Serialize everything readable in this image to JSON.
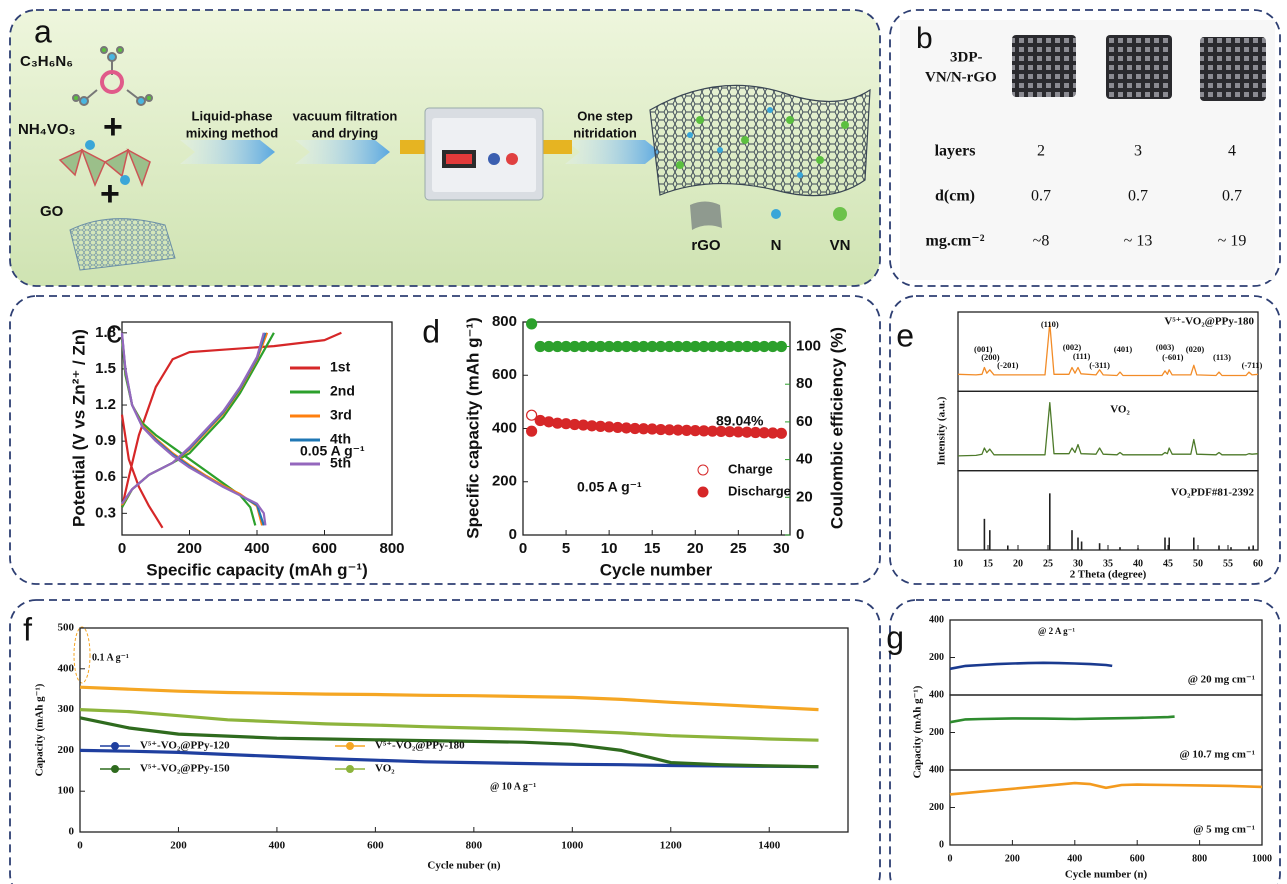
{
  "schematic": {
    "label": "a",
    "formula_melamine": "C₃H₆N₆",
    "formula_vanadate": "NH₄VO₃",
    "go": "GO",
    "plus": [
      "+",
      "+"
    ],
    "steps": [
      [
        "Liquid-phase",
        "mixing method"
      ],
      [
        "vacuum filtration",
        "and drying"
      ],
      [
        "One step",
        "nitridation"
      ]
    ],
    "legend": [
      "rGO",
      "N",
      "VN"
    ]
  },
  "table": {
    "label": "b",
    "title": [
      "3DP-",
      "VN/N-rGO"
    ],
    "rows": [
      [
        "layers",
        "2",
        "3",
        "4"
      ],
      [
        "d(cm)",
        "0.7",
        "0.7",
        "0.7"
      ],
      [
        "mg.cm⁻²",
        "~8",
        "~ 13",
        "~ 19"
      ]
    ]
  },
  "chart_data": [
    {
      "type": "line",
      "label": "c",
      "xlabel": "Specific capacity (mAh g⁻¹)",
      "ylabel": "Potential (V vs Zn²⁺ / Zn)",
      "annotations": [
        "0.05 A g⁻¹"
      ],
      "xlim": [
        0,
        800
      ],
      "xticks": [
        0,
        200,
        400,
        600,
        800
      ],
      "ylim": [
        0.12,
        1.89
      ],
      "yticks": [
        0.3,
        0.6,
        0.9,
        1.2,
        1.5,
        1.8
      ],
      "series": [
        {
          "name": "1st",
          "color": "#d62728",
          "x": [
            0,
            20,
            50,
            80,
            100,
            120,
            null,
            0,
            20,
            50,
            100,
            150,
            200,
            300,
            450,
            600,
            650
          ],
          "values": [
            1.12,
            0.75,
            0.52,
            0.36,
            0.27,
            0.18,
            null,
            0.35,
            0.6,
            0.95,
            1.35,
            1.58,
            1.64,
            1.66,
            1.69,
            1.74,
            1.8
          ]
        },
        {
          "name": "2nd",
          "color": "#2ca02c",
          "x": [
            0,
            10,
            30,
            60,
            100,
            150,
            200,
            250,
            300,
            350,
            380,
            395,
            null,
            0,
            30,
            80,
            150,
            200,
            250,
            300,
            350,
            400,
            430,
            450
          ],
          "values": [
            1.75,
            1.45,
            1.2,
            1.05,
            0.95,
            0.85,
            0.75,
            0.65,
            0.55,
            0.45,
            0.35,
            0.2,
            null,
            0.35,
            0.5,
            0.62,
            0.72,
            0.8,
            0.95,
            1.1,
            1.3,
            1.55,
            1.7,
            1.8
          ]
        },
        {
          "name": "3rd",
          "color": "#ff7f0e",
          "x": [
            0,
            10,
            30,
            60,
            100,
            150,
            200,
            250,
            300,
            350,
            400,
            415,
            null,
            0,
            30,
            80,
            150,
            200,
            250,
            300,
            350,
            400,
            430
          ],
          "values": [
            1.78,
            1.48,
            1.2,
            1.03,
            0.92,
            0.8,
            0.7,
            0.61,
            0.53,
            0.46,
            0.36,
            0.2,
            null,
            0.37,
            0.5,
            0.62,
            0.72,
            0.83,
            0.98,
            1.13,
            1.33,
            1.58,
            1.8
          ]
        },
        {
          "name": "4th",
          "color": "#1f77b4",
          "x": [
            0,
            10,
            30,
            60,
            100,
            150,
            200,
            250,
            300,
            350,
            400,
            420,
            null,
            0,
            30,
            80,
            150,
            200,
            250,
            300,
            350,
            400,
            425
          ],
          "values": [
            1.79,
            1.49,
            1.2,
            1.02,
            0.91,
            0.79,
            0.69,
            0.6,
            0.52,
            0.45,
            0.37,
            0.2,
            null,
            0.38,
            0.5,
            0.62,
            0.72,
            0.84,
            0.99,
            1.14,
            1.34,
            1.59,
            1.8
          ]
        },
        {
          "name": "5th",
          "color": "#9467bd",
          "x": [
            0,
            10,
            30,
            60,
            100,
            150,
            200,
            250,
            300,
            350,
            400,
            420,
            425,
            null,
            0,
            30,
            80,
            150,
            200,
            250,
            300,
            350,
            400,
            420
          ],
          "values": [
            1.8,
            1.5,
            1.2,
            1.02,
            0.9,
            0.78,
            0.68,
            0.6,
            0.52,
            0.45,
            0.38,
            0.3,
            0.2,
            null,
            0.38,
            0.5,
            0.62,
            0.72,
            0.85,
            1.0,
            1.15,
            1.35,
            1.6,
            1.8
          ]
        }
      ]
    },
    {
      "type": "scatter",
      "label": "d",
      "xlabel": "Cycle number",
      "ylabel": "Specific capacity (mAh g⁻¹)",
      "y2label": "Coulombic efficiency (%)",
      "annotations": [
        "0.05 A g⁻¹",
        "89.04%"
      ],
      "y2color": "#2ca02c",
      "x": [
        1,
        2,
        3,
        4,
        5,
        6,
        7,
        8,
        9,
        10,
        11,
        12,
        13,
        14,
        15,
        16,
        17,
        18,
        19,
        20,
        21,
        22,
        23,
        24,
        25,
        26,
        27,
        28,
        29,
        30
      ],
      "xlim": [
        0,
        31
      ],
      "xticks": [
        0,
        5,
        10,
        15,
        20,
        25,
        30
      ],
      "ylim": [
        0,
        800
      ],
      "yticks": [
        0,
        200,
        400,
        600,
        800
      ],
      "y2lim": [
        0,
        113
      ],
      "y2ticks": [
        0,
        20,
        40,
        60,
        80,
        100
      ],
      "series": [
        {
          "name": "Charge",
          "color": "#d62728",
          "marker": "open",
          "values": [
            450,
            null,
            null,
            null,
            null,
            null,
            null,
            null,
            null,
            null,
            null,
            null,
            null,
            null,
            null,
            null,
            null,
            null,
            null,
            null,
            null,
            null,
            null,
            null,
            null,
            null,
            null,
            null,
            null,
            null
          ]
        },
        {
          "name": "Discharge",
          "color": "#d62728",
          "marker": "filled",
          "values": [
            390,
            430,
            425,
            420,
            418,
            415,
            413,
            410,
            408,
            406,
            404,
            402,
            400,
            399,
            398,
            396,
            395,
            394,
            393,
            392,
            391,
            390,
            389,
            388,
            387,
            386,
            385,
            384,
            383,
            382
          ]
        },
        {
          "color": "#2ca02c",
          "marker": "filled",
          "axis": "y2",
          "values": [
            112,
            100,
            100,
            100,
            100,
            100,
            100,
            100,
            100,
            100,
            100,
            100,
            100,
            100,
            100,
            100,
            100,
            100,
            100,
            100,
            100,
            100,
            100,
            100,
            100,
            100,
            100,
            100,
            100,
            100
          ]
        }
      ]
    },
    {
      "type": "line",
      "label": "e",
      "xlabel": "2 Theta (degree)",
      "ylabel": "Intensity (a.u.)",
      "xlim": [
        10,
        60
      ],
      "xticks": [
        10,
        15,
        20,
        25,
        30,
        35,
        40,
        45,
        50,
        55,
        60
      ],
      "x": [
        10,
        13,
        14,
        14.4,
        14.8,
        15.3,
        16,
        24.5,
        25.3,
        26,
        28.5,
        29,
        29.5,
        30,
        30.5,
        33,
        33.6,
        34.2,
        36.5,
        37,
        37.5,
        44,
        44.5,
        44.9,
        45.2,
        45.7,
        48.8,
        49.3,
        49.8,
        53,
        53.5,
        54,
        58,
        58.5,
        59,
        60
      ],
      "peak_labels": [
        {
          "label": "(001)",
          "x": 14.2
        },
        {
          "label": "(200)",
          "x": 15.4
        },
        {
          "label": "(-201)",
          "x": 18.3
        },
        {
          "label": "(110)",
          "x": 25.3
        },
        {
          "label": "(002)",
          "x": 29
        },
        {
          "label": "(111)",
          "x": 30.6
        },
        {
          "label": "(-311)",
          "x": 33.6
        },
        {
          "label": "(401)",
          "x": 37.5
        },
        {
          "label": "(003)",
          "x": 44.5
        },
        {
          "label": "(-601)",
          "x": 45.8
        },
        {
          "label": "(020)",
          "x": 49.5
        },
        {
          "label": "(113)",
          "x": 54
        },
        {
          "label": "(-711)",
          "x": 59
        }
      ],
      "panels": [
        {
          "ylim": [
            -20,
            120
          ],
          "series": [
            {
              "name": "V⁵⁺-VO₂@PPy-180",
              "color": "#f28c28",
              "values": [
                10,
                9,
                10,
                22,
                12,
                18,
                9,
                9,
                100,
                10,
                10,
                22,
                12,
                22,
                11,
                9,
                18,
                9,
                8,
                14,
                8,
                8,
                16,
                10,
                18,
                9,
                9,
                26,
                9,
                8,
                14,
                8,
                8,
                14,
                9,
                10
              ]
            }
          ]
        },
        {
          "ylim": [
            -20,
            120
          ],
          "series": [
            {
              "name": "VO₂",
              "color": "#4d7a2a",
              "values": [
                6,
                7,
                9,
                20,
                12,
                18,
                8,
                8,
                100,
                10,
                10,
                20,
                12,
                26,
                10,
                9,
                20,
                9,
                8,
                12,
                8,
                8,
                12,
                10,
                20,
                9,
                9,
                35,
                9,
                8,
                12,
                8,
                8,
                10,
                9,
                10
              ]
            }
          ]
        },
        {
          "ylim": [
            0,
            140
          ],
          "series": [
            {
              "name": "VO₂PDF#81-2392",
              "color": "#222222",
              "type": "bar",
              "x": [
                14.4,
                15.3,
                18.3,
                25.3,
                29,
                30,
                30.6,
                33.6,
                37,
                40,
                44.5,
                45.2,
                49.3,
                53.5,
                55.5,
                58.5,
                59.2
              ],
              "values": [
                55,
                35,
                8,
                100,
                35,
                22,
                15,
                12,
                5,
                3,
                22,
                22,
                22,
                8,
                5,
                6,
                8
              ]
            }
          ]
        }
      ]
    },
    {
      "type": "line",
      "label": "f",
      "xlabel": "Cycle nuber (n)",
      "ylabel": "Capacity (mAh g⁻¹)",
      "annotations": [
        "0.1 A g⁻¹",
        "@ 10 A g⁻¹"
      ],
      "x": [
        0,
        100,
        200,
        300,
        400,
        500,
        600,
        700,
        800,
        900,
        1000,
        1100,
        1200,
        1300,
        1400,
        1500
      ],
      "xlim": [
        0,
        1560
      ],
      "xticks": [
        0,
        200,
        400,
        600,
        800,
        1000,
        1200,
        1400
      ],
      "ylim": [
        0,
        500
      ],
      "yticks": [
        0,
        100,
        200,
        300,
        400,
        500
      ],
      "series": [
        {
          "name": "V⁵⁺-VO₂@PPy-120",
          "color": "#1f3f9f",
          "values": [
            200,
            198,
            195,
            190,
            185,
            180,
            176,
            172,
            170,
            168,
            166,
            165,
            163,
            162,
            161,
            160
          ]
        },
        {
          "name": "V⁵⁺-VO₂@PPy-180",
          "color": "#f5a623",
          "values": [
            355,
            350,
            345,
            342,
            340,
            338,
            337,
            335,
            334,
            332,
            330,
            325,
            318,
            312,
            306,
            300
          ]
        },
        {
          "name": "V⁵⁺-VO₂@PPy-150",
          "color": "#2f6b1e",
          "values": [
            280,
            255,
            240,
            235,
            230,
            228,
            226,
            224,
            222,
            220,
            215,
            200,
            170,
            165,
            162,
            160
          ]
        },
        {
          "name": "VO₂",
          "color": "#8db43c",
          "values": [
            300,
            295,
            285,
            275,
            270,
            265,
            262,
            258,
            255,
            252,
            248,
            243,
            236,
            232,
            228,
            225
          ]
        }
      ]
    },
    {
      "type": "line",
      "label": "g",
      "xlabel": "Cycle number (n)",
      "ylabel": "Capacity (mAh g⁻¹)",
      "annotations": [
        "@ 2 A g⁻¹"
      ],
      "xlim": [
        0,
        1000
      ],
      "xticks": [
        0,
        200,
        400,
        600,
        800,
        1000
      ],
      "panels": [
        {
          "ylim": [
            0,
            400
          ],
          "yticks": [
            200,
            400
          ],
          "series": [
            {
              "name": "@ 20 mg cm⁻¹",
              "color": "#1a3a8f",
              "x": [
                0,
                50,
                100,
                150,
                200,
                250,
                300,
                350,
                400,
                450,
                500,
                520
              ],
              "values": [
                140,
                155,
                160,
                165,
                168,
                170,
                172,
                170,
                168,
                165,
                160,
                155
              ]
            }
          ]
        },
        {
          "ylim": [
            0,
            400
          ],
          "yticks": [
            200,
            400
          ],
          "series": [
            {
              "name": "@ 10.7 mg cm⁻¹",
              "color": "#2e8b2e",
              "x": [
                0,
                50,
                100,
                200,
                300,
                400,
                500,
                600,
                700,
                720
              ],
              "values": [
                255,
                270,
                272,
                275,
                274,
                272,
                275,
                278,
                282,
                285
              ]
            }
          ]
        },
        {
          "ylim": [
            0,
            400
          ],
          "yticks": [
            0,
            200,
            400
          ],
          "series": [
            {
              "name": "@ 5 mg cm⁻¹",
              "color": "#f39a1e",
              "x": [
                0,
                100,
                200,
                300,
                400,
                450,
                500,
                550,
                600,
                700,
                800,
                900,
                1000
              ],
              "values": [
                270,
                285,
                300,
                315,
                330,
                325,
                305,
                320,
                322,
                320,
                318,
                315,
                310
              ]
            }
          ]
        }
      ]
    }
  ]
}
